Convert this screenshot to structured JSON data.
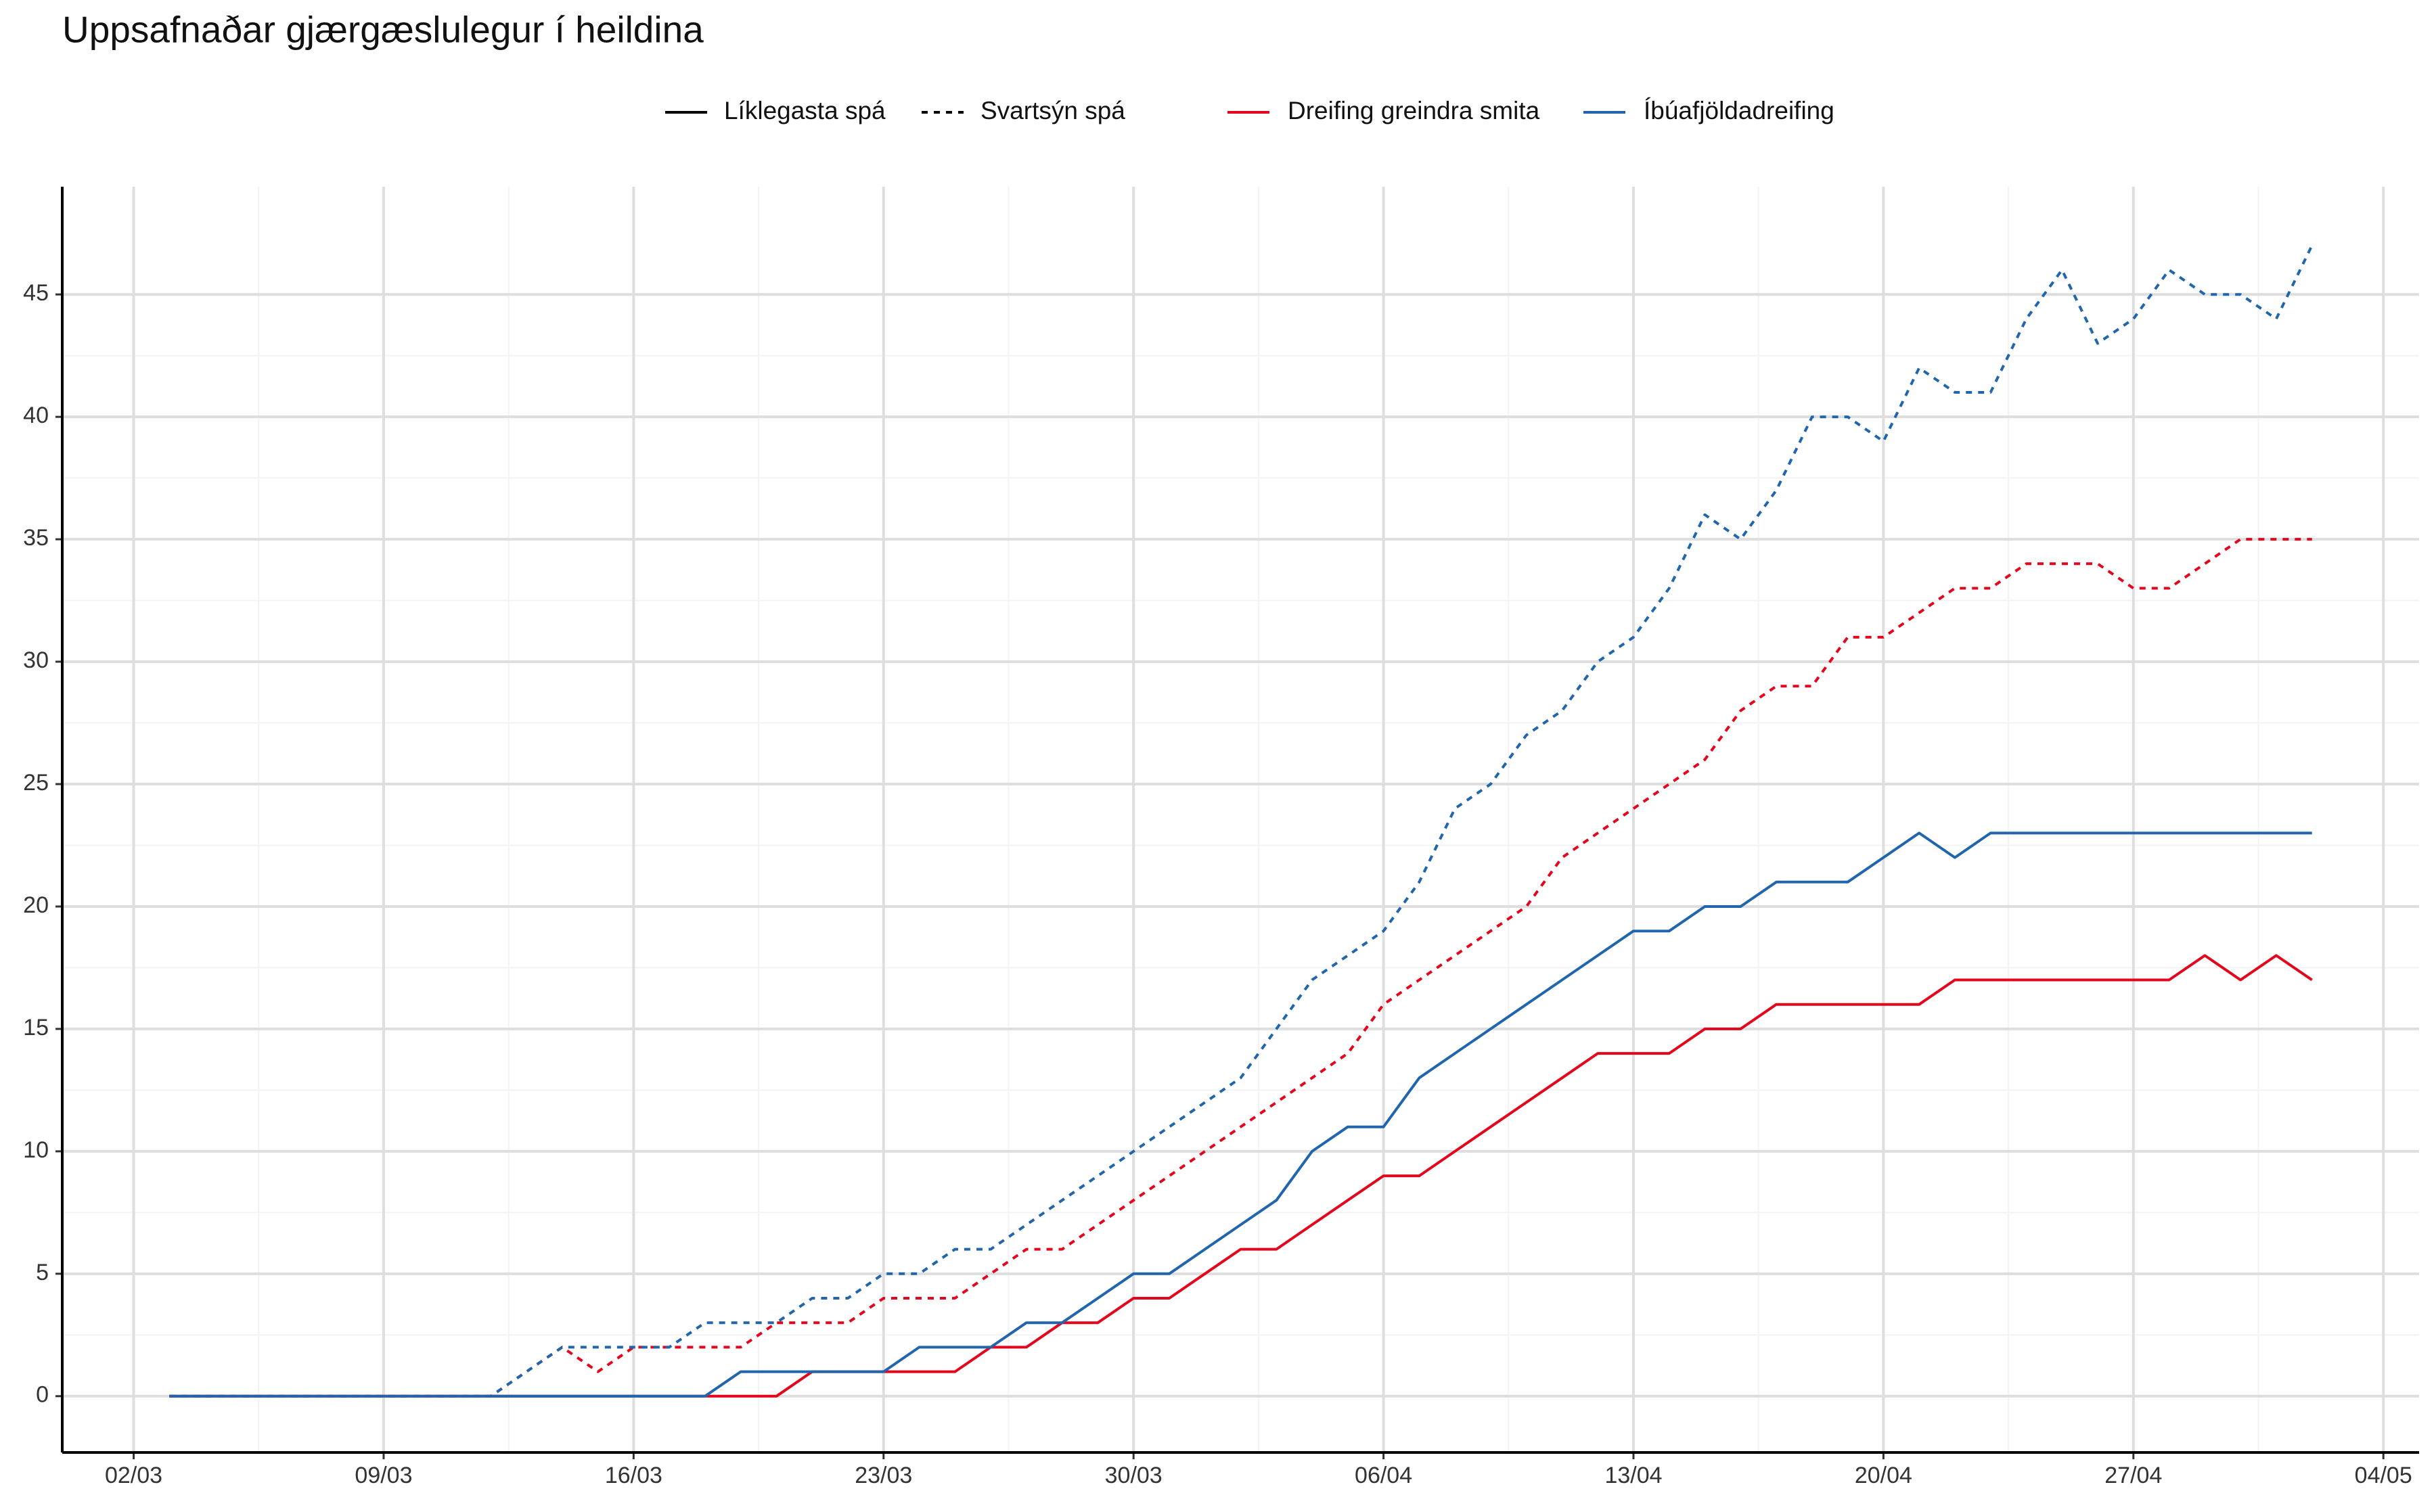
{
  "chart_data": {
    "type": "line",
    "title": "Uppsafnaðar gjærgæslulegur í heildina",
    "linetype_legend": [
      {
        "label": "Líklegasta spá",
        "dash": "solid"
      },
      {
        "label": "Svartsýn spá",
        "dash": "dotted"
      }
    ],
    "color_legend": [
      {
        "label": "Dreifing greindra smita",
        "color": "#e3061c"
      },
      {
        "label": "Íbúafjöldadreifing",
        "color": "#2166ac"
      }
    ],
    "x": [
      "03/03",
      "04/03",
      "05/03",
      "06/03",
      "07/03",
      "08/03",
      "09/03",
      "10/03",
      "11/03",
      "12/03",
      "13/03",
      "14/03",
      "15/03",
      "16/03",
      "17/03",
      "18/03",
      "19/03",
      "20/03",
      "21/03",
      "22/03",
      "23/03",
      "24/03",
      "25/03",
      "26/03",
      "27/03",
      "28/03",
      "29/03",
      "30/03",
      "31/03",
      "01/04",
      "02/04",
      "03/04",
      "04/04",
      "05/04",
      "06/04",
      "07/04",
      "08/04",
      "09/04",
      "10/04",
      "11/04",
      "12/04",
      "13/04",
      "14/04",
      "15/04",
      "16/04",
      "17/04",
      "18/04",
      "19/04",
      "20/04",
      "21/04",
      "22/04",
      "23/04",
      "24/04",
      "25/04",
      "26/04",
      "27/04",
      "28/04",
      "29/04",
      "30/04",
      "01/05",
      "02/05"
    ],
    "series": [
      {
        "color_group": 0,
        "linetype_group": 0,
        "color": "#e3061c",
        "dash": "solid",
        "values": [
          0,
          0,
          0,
          0,
          0,
          0,
          0,
          0,
          0,
          0,
          0,
          0,
          0,
          0,
          0,
          0,
          0,
          0,
          1,
          1,
          1,
          1,
          1,
          2,
          2,
          3,
          3,
          4,
          4,
          5,
          6,
          6,
          7,
          8,
          9,
          9,
          10,
          11,
          12,
          13,
          14,
          14,
          14,
          15,
          15,
          16,
          16,
          16,
          16,
          16,
          17,
          17,
          17,
          17,
          17,
          17,
          17,
          18,
          17,
          18,
          17
        ]
      },
      {
        "color_group": 1,
        "linetype_group": 0,
        "color": "#2166ac",
        "dash": "solid",
        "values": [
          0,
          0,
          0,
          0,
          0,
          0,
          0,
          0,
          0,
          0,
          0,
          0,
          0,
          0,
          0,
          0,
          1,
          1,
          1,
          1,
          1,
          2,
          2,
          2,
          3,
          3,
          4,
          5,
          5,
          6,
          7,
          8,
          10,
          11,
          11,
          13,
          14,
          15,
          16,
          17,
          18,
          19,
          19,
          20,
          20,
          21,
          21,
          21,
          22,
          23,
          22,
          23,
          23,
          23,
          23,
          23,
          23,
          23,
          23,
          23,
          23
        ]
      },
      {
        "color_group": 0,
        "linetype_group": 1,
        "color": "#e3061c",
        "dash": "dotted",
        "values": [
          0,
          0,
          0,
          0,
          0,
          0,
          0,
          0,
          0,
          0,
          1,
          2,
          1,
          2,
          2,
          2,
          2,
          3,
          3,
          3,
          4,
          4,
          4,
          5,
          6,
          6,
          7,
          8,
          9,
          10,
          11,
          12,
          13,
          14,
          16,
          17,
          18,
          19,
          20,
          22,
          23,
          24,
          25,
          26,
          28,
          29,
          29,
          31,
          31,
          32,
          33,
          33,
          34,
          34,
          34,
          33,
          33,
          34,
          35,
          35,
          35
        ]
      },
      {
        "color_group": 1,
        "linetype_group": 1,
        "color": "#2166ac",
        "dash": "dotted",
        "values": [
          0,
          0,
          0,
          0,
          0,
          0,
          0,
          0,
          0,
          0,
          1,
          2,
          2,
          2,
          2,
          3,
          3,
          3,
          4,
          4,
          5,
          5,
          6,
          6,
          7,
          8,
          9,
          10,
          11,
          12,
          13,
          15,
          17,
          18,
          19,
          21,
          24,
          25,
          27,
          28,
          30,
          31,
          33,
          36,
          35,
          37,
          40,
          40,
          39,
          42,
          41,
          41,
          44,
          46,
          43,
          44,
          46,
          45,
          45,
          44,
          47
        ]
      }
    ],
    "xlim": [
      "29/02",
      "05/05"
    ],
    "xticks": [
      "02/03",
      "09/03",
      "16/03",
      "23/03",
      "30/03",
      "06/04",
      "13/04",
      "20/04",
      "27/04",
      "04/05"
    ],
    "ylim": [
      -2.3,
      49.4
    ],
    "yticks": [
      0,
      5,
      10,
      15,
      20,
      25,
      30,
      35,
      40,
      45
    ],
    "grid": true,
    "minor_grid": true
  }
}
